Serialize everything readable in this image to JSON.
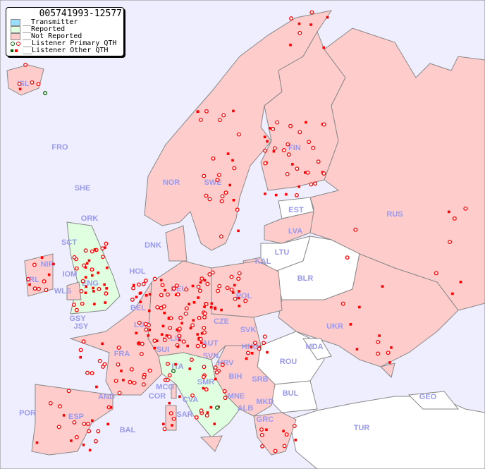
{
  "legend": {
    "title": "005741993-12577",
    "items": [
      {
        "label": "__Transmitter",
        "color": "#99ddff"
      },
      {
        "label": "__Reported",
        "color": "#e0ffe0"
      },
      {
        "label": "__Not Reported",
        "color": "#ffcccc"
      },
      {
        "label": "__Listener Primary QTH",
        "marker": "ring",
        "colors": [
          "#006600",
          "#ff0000"
        ]
      },
      {
        "label": "__Listener Other QTH",
        "marker": "square",
        "colors": [
          "#006600",
          "#ff0000"
        ]
      }
    ]
  },
  "colors": {
    "sea": "#eeeeff",
    "not_reported": "#ffcccc",
    "reported": "#e0ffe0",
    "no_data": "#ffffff",
    "border": "#888888",
    "marker": "#ff0000",
    "label": "#9999ee"
  },
  "country_labels": [
    "ISL",
    "FRO",
    "SHE",
    "ORK",
    "NOR",
    "SWE",
    "FIN",
    "EST",
    "LVA",
    "LTU",
    "KAL",
    "BLR",
    "RUS",
    "UKR",
    "MDA",
    "ROU",
    "BUL",
    "TUR",
    "GEO",
    "GRC",
    "MKD",
    "ALB",
    "MNE",
    "SRB",
    "BIH",
    "HRV",
    "SVN",
    "SVK",
    "HNG",
    "AUT",
    "CZE",
    "POL",
    "DEU",
    "DNK",
    "HOL",
    "BEL",
    "LUX",
    "LIE",
    "SUI",
    "FRA",
    "ITA",
    "SMR",
    "MCO",
    "COR",
    "CVA",
    "SAR",
    "AND",
    "ESP",
    "POR",
    "BAL",
    "IRL",
    "NIR",
    "SCT",
    "IOM",
    "ENG",
    "WLS",
    "GSY",
    "JSY"
  ]
}
